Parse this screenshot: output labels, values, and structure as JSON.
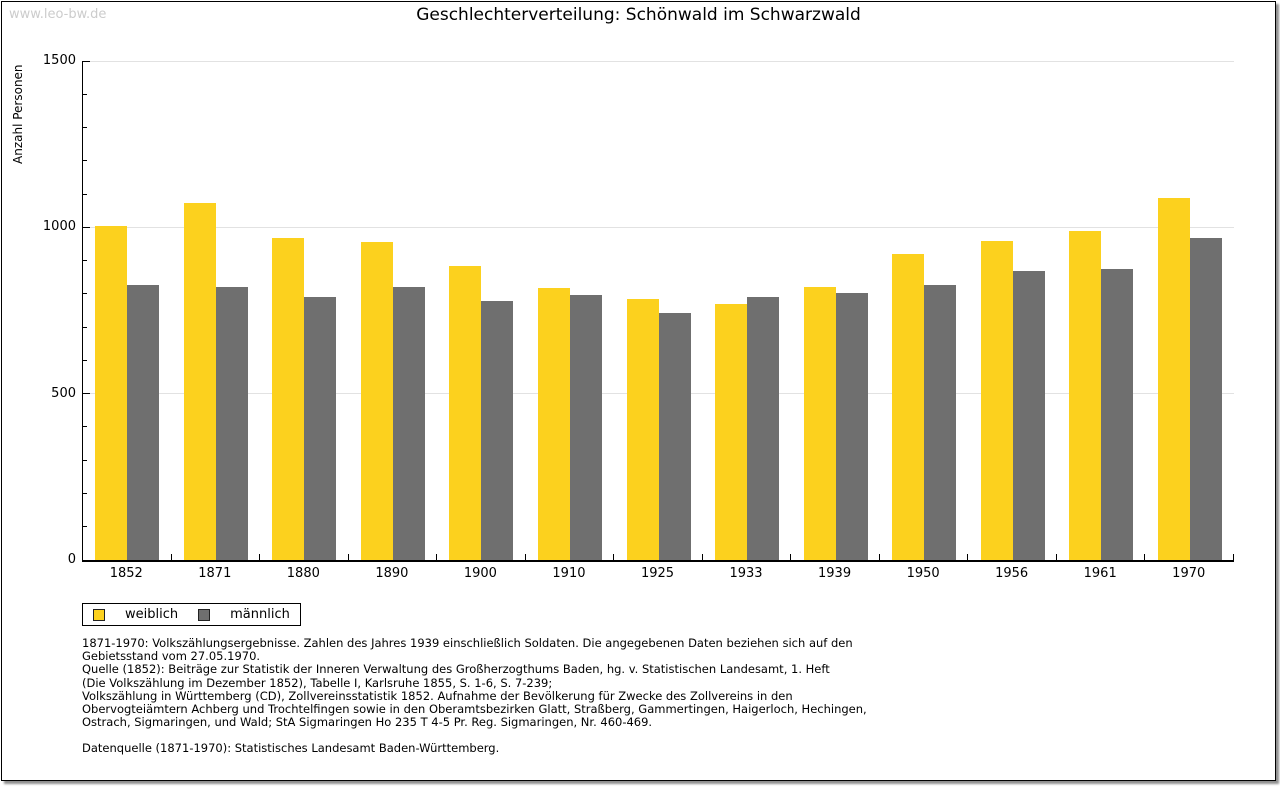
{
  "watermark": "www.leo-bw.de",
  "title": "Geschlechterverteilung: Schönwald im Schwarzwald",
  "chart_data": {
    "type": "bar",
    "title": "Geschlechterverteilung: Schönwald im Schwarzwald",
    "xlabel": "",
    "ylabel": "Anzahl Personen",
    "ylim": [
      0,
      1500
    ],
    "ytick_values": [
      0,
      500,
      1000,
      1500
    ],
    "minor_tick_step": 100,
    "grid": true,
    "legend_position": "bottom-left",
    "categories": [
      "1852",
      "1871",
      "1880",
      "1890",
      "1900",
      "1910",
      "1925",
      "1933",
      "1939",
      "1950",
      "1956",
      "1961",
      "1970"
    ],
    "series": [
      {
        "name": "weiblich",
        "color": "#fcd11e",
        "values": [
          1005,
          1073,
          968,
          956,
          884,
          817,
          784,
          769,
          820,
          920,
          959,
          988,
          1089
        ]
      },
      {
        "name": "männlich",
        "color": "#6f6f6f",
        "values": [
          828,
          822,
          790,
          820,
          778,
          797,
          742,
          790,
          802,
          828,
          870,
          875,
          968
        ]
      }
    ]
  },
  "colors": {
    "weiblich": "#fcd11e",
    "maennlich": "#6f6f6f",
    "gridline": "#e2e2e2",
    "watermark": "#cccccc",
    "axis": "#000000"
  },
  "footer": {
    "source_lines": [
      "1871-1970: Volkszählungsergebnisse. Zahlen des Jahres 1939 einschließlich Soldaten. Die angegebenen Daten beziehen sich auf den",
      "Gebietsstand vom 27.05.1970.",
      "Quelle (1852): Beiträge zur Statistik der Inneren Verwaltung des Großherzogthums Baden, hg. v. Statistischen Landesamt, 1. Heft",
      "(Die Volkszählung im Dezember 1852), Tabelle I, Karlsruhe 1855, S. 1-6, S. 7-239;",
      "Volkszählung in Württemberg (CD), Zollvereinsstatistik 1852. Aufnahme der Bevölkerung für Zwecke des Zollvereins in den",
      "Obervogteiämtern Achberg und Trochtelfingen sowie in den Oberamtsbezirken Glatt, Straßberg, Gammertingen, Haigerloch, Hechingen,",
      "Ostrach, Sigmaringen, und Wald; StA Sigmaringen Ho 235 T 4-5 Pr. Reg. Sigmaringen, Nr. 460-469."
    ],
    "datasource_line": "Datenquelle (1871-1970): Statistisches Landesamt Baden-Württemberg."
  }
}
